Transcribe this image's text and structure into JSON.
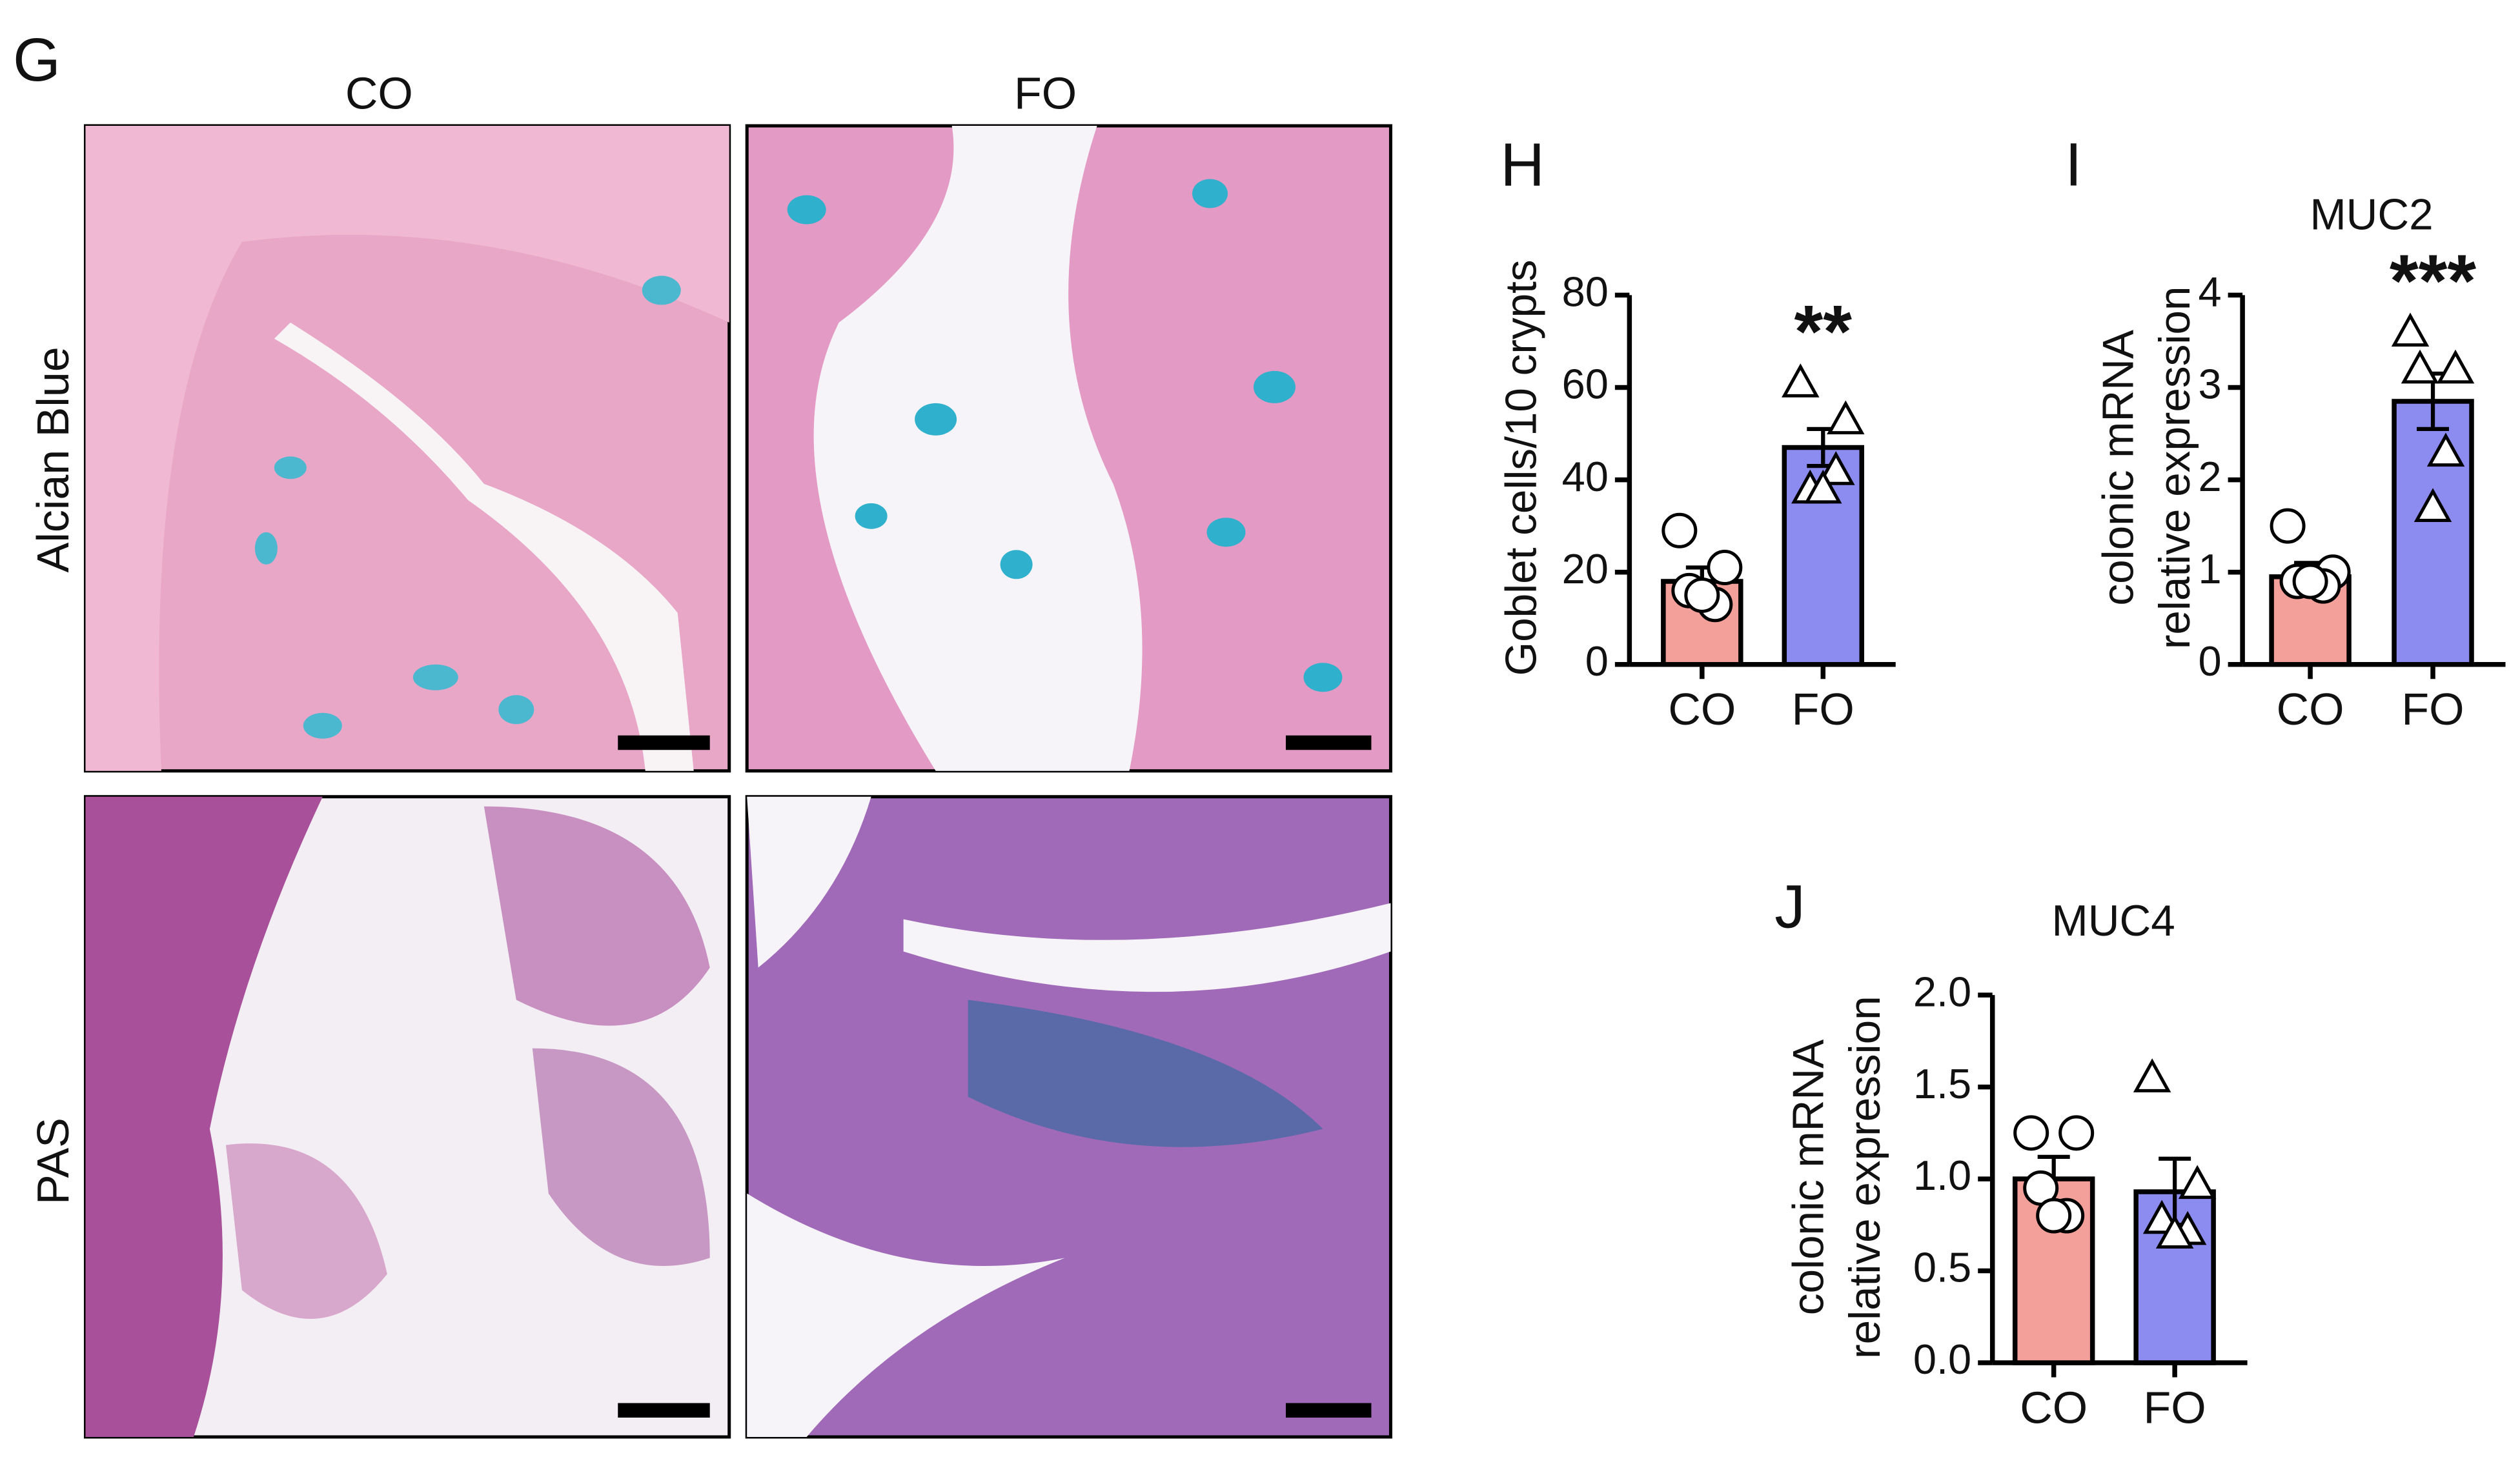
{
  "figure": {
    "panel_label": "G",
    "columns": [
      "CO",
      "FO"
    ],
    "rows": [
      "Alcian Blue",
      "PAS"
    ]
  },
  "chart_data": [
    {
      "type": "bar",
      "panel_label": "H",
      "y_label": "Goblet cells/10 crypts",
      "annotation": "**",
      "categories": [
        "CO",
        "FO"
      ],
      "values": [
        18,
        47
      ],
      "errors": [
        3,
        4
      ],
      "colors": [
        "#f4a09a",
        "#8c8cf0"
      ],
      "markers": [
        "circle",
        "triangle"
      ],
      "points": [
        [
          29,
          21,
          16,
          13,
          15
        ],
        [
          61,
          53,
          38,
          42,
          38
        ]
      ],
      "ylim": [
        0,
        80
      ],
      "yticks": [
        0,
        20,
        40,
        60,
        80
      ]
    },
    {
      "type": "bar",
      "panel_label": "I",
      "title": "MUC2",
      "y_label": [
        "colonic mRNA",
        "relative expression"
      ],
      "annotation": "***",
      "categories": [
        "CO",
        "FO"
      ],
      "values": [
        0.95,
        2.85
      ],
      "errors": [
        0.15,
        0.3
      ],
      "colors": [
        "#f4a09a",
        "#8c8cf0"
      ],
      "markers": [
        "circle",
        "triangle"
      ],
      "points": [
        [
          1.5,
          1.0,
          0.9,
          0.85,
          0.9
        ],
        [
          3.6,
          3.2,
          3.2,
          2.3,
          1.7
        ]
      ],
      "ylim": [
        0,
        4
      ],
      "yticks": [
        0,
        1,
        2,
        3,
        4
      ]
    },
    {
      "type": "bar",
      "panel_label": "J",
      "title": "MUC4",
      "y_label": [
        "colonic mRNA",
        "relative expression"
      ],
      "categories": [
        "CO",
        "FO"
      ],
      "values": [
        1.0,
        0.93
      ],
      "errors": [
        0.12,
        0.18
      ],
      "colors": [
        "#f4a09a",
        "#8c8cf0"
      ],
      "markers": [
        "circle",
        "triangle"
      ],
      "points": [
        [
          1.25,
          1.25,
          0.95,
          0.8,
          0.8
        ],
        [
          1.55,
          0.97,
          0.78,
          0.72,
          0.7
        ]
      ],
      "ylim": [
        0,
        2.0
      ],
      "yticks": [
        {
          "value": 0,
          "label": "0.0"
        },
        0.5,
        {
          "value": 1,
          "label": "1.0"
        },
        1.5,
        {
          "value": 2,
          "label": "2.0"
        }
      ]
    }
  ]
}
